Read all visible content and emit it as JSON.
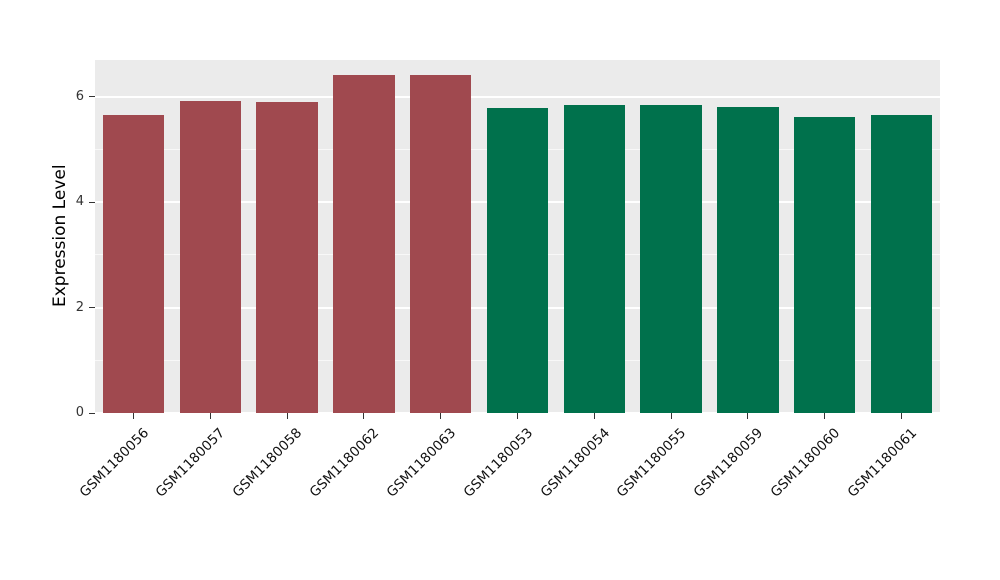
{
  "chart_data": {
    "type": "bar",
    "title": "",
    "xlabel": "",
    "ylabel": "Expression Level",
    "categories": [
      "GSM1180056",
      "GSM1180057",
      "GSM1180058",
      "GSM1180062",
      "GSM1180063",
      "GSM1180053",
      "GSM1180054",
      "GSM1180055",
      "GSM1180059",
      "GSM1180060",
      "GSM1180061"
    ],
    "values": [
      5.65,
      5.93,
      5.9,
      6.42,
      6.42,
      5.78,
      5.85,
      5.85,
      5.8,
      5.62,
      5.65
    ],
    "groups": [
      "red",
      "red",
      "red",
      "red",
      "red",
      "green",
      "green",
      "green",
      "green",
      "green",
      "green"
    ],
    "group_colors": {
      "red": "#A0494F",
      "green": "#00714C"
    },
    "ylim": [
      0,
      6.7
    ],
    "yticks": [
      0,
      2,
      4,
      6
    ],
    "ytick_labels": [
      "0",
      "2",
      "4",
      "6"
    ],
    "minor_ticks": [
      1,
      3,
      5
    ],
    "panel_background": "#EBEBEB",
    "grid_color": "#FFFFFF",
    "legend": "none",
    "grid": "on",
    "bar_width_fraction": 0.8
  }
}
